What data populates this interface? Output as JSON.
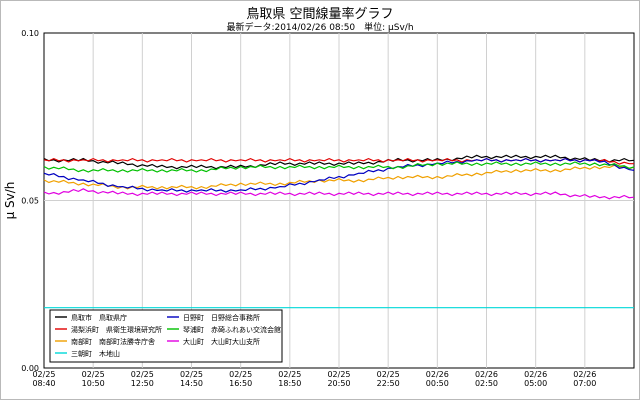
{
  "chart_data": {
    "type": "line",
    "title": "鳥取県 空間線量率グラフ",
    "subtitle": "最新データ:2014/02/26 08:50　単位: μSv/h",
    "ylabel": "μ Sv/h",
    "xlabel": "",
    "ylim": [
      0,
      0.1
    ],
    "yticks": [
      "0.00",
      "0.05",
      "0.10"
    ],
    "x_ticks": [
      {
        "date": "02/25",
        "time": "08:40"
      },
      {
        "date": "02/25",
        "time": "10:50"
      },
      {
        "date": "02/25",
        "time": "12:50"
      },
      {
        "date": "02/25",
        "time": "14:50"
      },
      {
        "date": "02/25",
        "time": "16:50"
      },
      {
        "date": "02/25",
        "time": "18:50"
      },
      {
        "date": "02/25",
        "time": "20:50"
      },
      {
        "date": "02/25",
        "time": "22:50"
      },
      {
        "date": "02/26",
        "time": "00:50"
      },
      {
        "date": "02/26",
        "time": "02:50"
      },
      {
        "date": "02/26",
        "time": "05:00"
      },
      {
        "date": "02/26",
        "time": "07:00"
      }
    ],
    "grid": true,
    "legend_position": "bottom-left",
    "series": [
      {
        "name": "鳥取市　鳥取県庁",
        "color": "#000000",
        "values": [
          0.062,
          0.062,
          0.061,
          0.06,
          0.06,
          0.06,
          0.061,
          0.061,
          0.061,
          0.062,
          0.062,
          0.063,
          0.063,
          0.063,
          0.062,
          0.062
        ]
      },
      {
        "name": "湯梨浜町　県衛生環境研究所",
        "color": "#e00000",
        "values": [
          0.062,
          0.062,
          0.062,
          0.062,
          0.062,
          0.062,
          0.062,
          0.062,
          0.062,
          0.062,
          0.062,
          0.062,
          0.062,
          0.062,
          0.062,
          0.061
        ]
      },
      {
        "name": "南部町　南部町法勝寺庁舎",
        "color": "#f0a000",
        "values": [
          0.056,
          0.055,
          0.054,
          0.054,
          0.054,
          0.055,
          0.055,
          0.056,
          0.056,
          0.057,
          0.057,
          0.058,
          0.059,
          0.059,
          0.06,
          0.06
        ]
      },
      {
        "name": "三朝町　木地山",
        "color": "#00d8d8",
        "values": [
          0.018,
          0.018,
          0.018,
          0.018,
          0.018,
          0.018,
          0.018,
          0.018,
          0.018,
          0.018,
          0.018,
          0.018,
          0.018,
          0.018,
          0.018,
          0.018
        ]
      },
      {
        "name": "日野町　日野総合事務所",
        "color": "#0000c0",
        "values": [
          0.058,
          0.056,
          0.054,
          0.053,
          0.053,
          0.053,
          0.054,
          0.056,
          0.058,
          0.06,
          0.061,
          0.062,
          0.062,
          0.062,
          0.062,
          0.059
        ]
      },
      {
        "name": "琴浦町　赤碕ふれあい交流会館",
        "color": "#00c000",
        "values": [
          0.06,
          0.059,
          0.059,
          0.059,
          0.059,
          0.06,
          0.06,
          0.06,
          0.06,
          0.06,
          0.061,
          0.061,
          0.061,
          0.061,
          0.061,
          0.06
        ]
      },
      {
        "name": "大山町　大山町大山支所",
        "color": "#e000e0",
        "values": [
          0.052,
          0.053,
          0.052,
          0.052,
          0.052,
          0.052,
          0.052,
          0.052,
          0.052,
          0.052,
          0.052,
          0.052,
          0.052,
          0.052,
          0.051,
          0.051
        ]
      }
    ]
  }
}
